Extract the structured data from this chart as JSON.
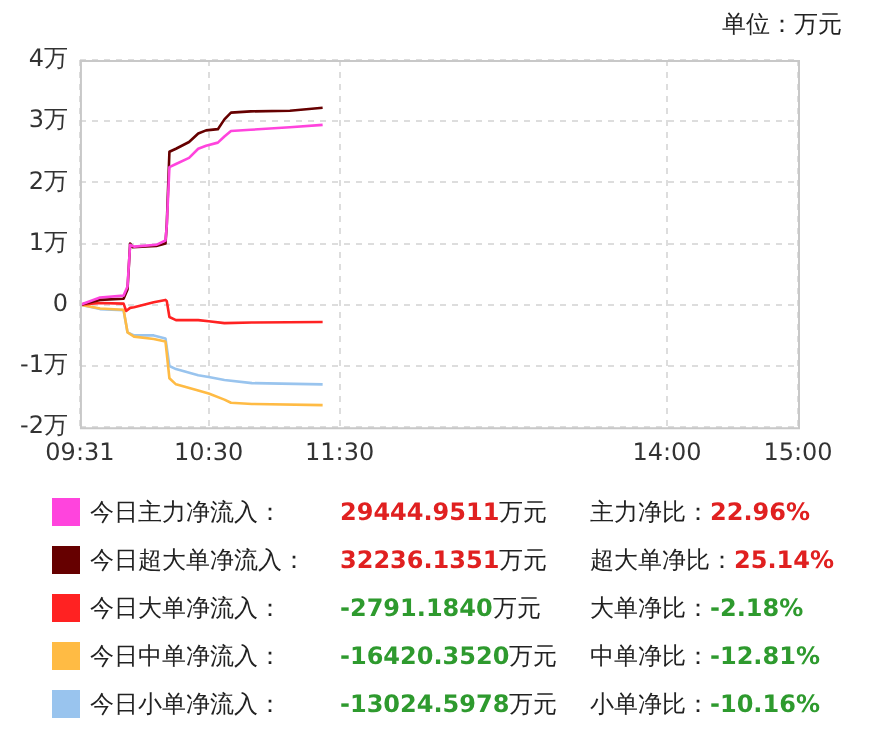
{
  "chart_data": {
    "type": "line",
    "legend": "bottom",
    "grid": true,
    "marker": "none",
    "line_style": "solid",
    "xlim": [
      9.5167,
      15
    ],
    "xticks": [
      {
        "value": 9.5167,
        "label": "09:31"
      },
      {
        "value": 10.5,
        "label": "10:30"
      },
      {
        "value": 11.5,
        "label": "11:30"
      },
      {
        "value": 14,
        "label": "14:00"
      },
      {
        "value": 15,
        "label": "15:00"
      }
    ],
    "ylim": [
      -2,
      4
    ],
    "yticks": [
      {
        "value": -2,
        "label": "-2万"
      },
      {
        "value": -1,
        "label": "-1万"
      },
      0,
      {
        "value": 1,
        "label": "1万"
      },
      {
        "value": 2,
        "label": "2万"
      },
      {
        "value": 3,
        "label": "3万"
      },
      {
        "value": 4,
        "label": "4万"
      }
    ],
    "series": [
      {
        "name": "今日主力净流入：",
        "color": "#ff44dd",
        "x": [
          9.52,
          9.67,
          9.85,
          9.88,
          9.9,
          9.93,
          10.1,
          10.17,
          10.18,
          10.2,
          10.25,
          10.35,
          10.42,
          10.48,
          10.57,
          10.62,
          10.67,
          10.82,
          11.12,
          11.37
        ],
        "values": [
          0,
          0.12,
          0.15,
          0.3,
          0.98,
          0.95,
          0.98,
          1.05,
          1.3,
          2.25,
          2.3,
          2.4,
          2.55,
          2.6,
          2.65,
          2.75,
          2.84,
          2.86,
          2.9,
          2.94
        ]
      },
      {
        "name": "今日超大单净流入：",
        "color": "#660000",
        "x": [
          9.52,
          9.67,
          9.85,
          9.88,
          9.9,
          9.92,
          10.1,
          10.17,
          10.18,
          10.2,
          10.25,
          10.35,
          10.42,
          10.48,
          10.57,
          10.62,
          10.67,
          10.82,
          11.12,
          11.37
        ],
        "values": [
          0,
          0.08,
          0.1,
          0.25,
          1,
          0.94,
          0.96,
          1,
          1.32,
          2.5,
          2.55,
          2.66,
          2.8,
          2.85,
          2.87,
          3.03,
          3.14,
          3.16,
          3.17,
          3.22
        ]
      },
      {
        "name": "今日大单净流入：",
        "color": "#ff2222",
        "x": [
          9.52,
          9.67,
          9.85,
          9.87,
          9.9,
          9.93,
          10.08,
          10.17,
          10.18,
          10.2,
          10.25,
          10.42,
          10.5,
          10.62,
          10.83,
          11.37
        ],
        "values": [
          0,
          0.03,
          0.02,
          -0.1,
          -0.05,
          -0.04,
          0.04,
          0.08,
          0.06,
          -0.2,
          -0.25,
          -0.25,
          -0.27,
          -0.3,
          -0.29,
          -0.28
        ]
      },
      {
        "name": "今日中单净流入：",
        "color": "#ffbb44",
        "x": [
          9.52,
          9.67,
          9.85,
          9.88,
          9.93,
          10.08,
          10.17,
          10.2,
          10.25,
          10.42,
          10.5,
          10.62,
          10.67,
          10.83,
          11.37
        ],
        "values": [
          0,
          -0.06,
          -0.08,
          -0.45,
          -0.52,
          -0.56,
          -0.6,
          -1.2,
          -1.3,
          -1.4,
          -1.45,
          -1.55,
          -1.6,
          -1.62,
          -1.64
        ]
      },
      {
        "name": "今日小单净流入：",
        "color": "#99c4ee",
        "x": [
          9.52,
          9.67,
          9.85,
          9.88,
          9.93,
          10.08,
          10.17,
          10.2,
          10.25,
          10.42,
          10.5,
          10.62,
          10.83,
          11.37
        ],
        "values": [
          0,
          -0.07,
          -0.09,
          -0.45,
          -0.5,
          -0.5,
          -0.55,
          -1,
          -1.05,
          -1.15,
          -1.18,
          -1.23,
          -1.28,
          -1.3
        ]
      }
    ],
    "annotations": [
      "单位：万元",
      "29444.9511万元",
      "主力净比：22.96%",
      "32236.1351万元",
      "超大单净比：25.14%",
      "-2791.1840万元",
      "大单净比：-2.18%",
      "-16420.3520万元",
      "中单净比：-12.81%",
      "-13024.5978万元",
      "小单净比：-10.16%"
    ]
  }
}
